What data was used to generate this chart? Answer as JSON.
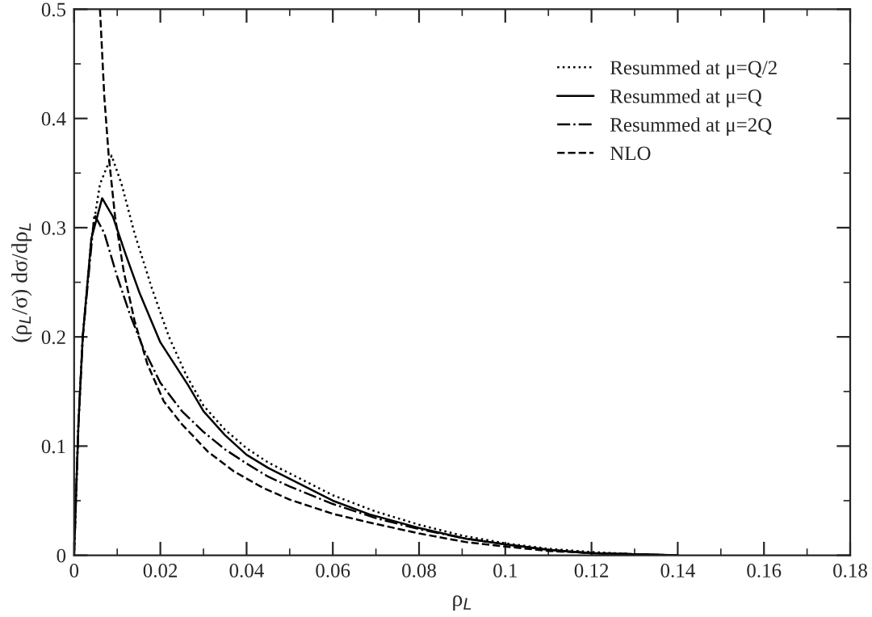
{
  "chart_data": {
    "type": "line",
    "xlabel": "ρ$_{L}$",
    "ylabel": "(ρ$_{L}$/σ) dσ/dρ$_{L}$",
    "xlim": [
      0,
      0.18
    ],
    "ylim": [
      0,
      0.5
    ],
    "xticks": [
      0,
      0.02,
      0.04,
      0.06,
      0.08,
      0.1,
      0.12,
      0.14,
      0.16,
      0.18
    ],
    "yticks": [
      0,
      0.1,
      0.2,
      0.3,
      0.4,
      0.5
    ],
    "legend": "top right",
    "grid": false,
    "marker": "none",
    "series": [
      {
        "name": "Resummed at μ=Q/2",
        "color": "#000000",
        "line_style": "dotted",
        "x": [
          0,
          0.001,
          0.002,
          0.004,
          0.006,
          0.0087,
          0.011,
          0.014,
          0.018,
          0.022,
          0.026,
          0.03,
          0.035,
          0.04,
          0.045,
          0.05,
          0.06,
          0.07,
          0.08,
          0.09,
          0.1,
          0.11,
          0.12,
          0.13,
          0.14
        ],
        "values": [
          0,
          0.12,
          0.2,
          0.29,
          0.34,
          0.366,
          0.34,
          0.295,
          0.245,
          0.2,
          0.165,
          0.137,
          0.115,
          0.098,
          0.085,
          0.075,
          0.055,
          0.04,
          0.028,
          0.018,
          0.011,
          0.006,
          0.003,
          0.001,
          0
        ]
      },
      {
        "name": "Resummed at μ=Q",
        "color": "#000000",
        "line_style": "solid",
        "x": [
          0,
          0.001,
          0.002,
          0.004,
          0.0065,
          0.009,
          0.012,
          0.0152,
          0.02,
          0.0264,
          0.03,
          0.035,
          0.04,
          0.045,
          0.05,
          0.06,
          0.0685,
          0.08,
          0.091,
          0.1,
          0.11,
          0.12,
          0.13,
          0.14
        ],
        "values": [
          0,
          0.12,
          0.2,
          0.29,
          0.327,
          0.31,
          0.275,
          0.24,
          0.195,
          0.156,
          0.132,
          0.11,
          0.092,
          0.08,
          0.07,
          0.05,
          0.0375,
          0.025,
          0.015,
          0.01,
          0.005,
          0.002,
          0.001,
          0
        ]
      },
      {
        "name": "Resummed at μ=2Q",
        "color": "#000000",
        "line_style": "dashdot",
        "x": [
          0,
          0.001,
          0.002,
          0.0047,
          0.007,
          0.01,
          0.013,
          0.016,
          0.02,
          0.025,
          0.03,
          0.035,
          0.04,
          0.045,
          0.05,
          0.06,
          0.07,
          0.08,
          0.09,
          0.1,
          0.11,
          0.12,
          0.13,
          0.14
        ],
        "values": [
          0,
          0.12,
          0.2,
          0.312,
          0.295,
          0.255,
          0.22,
          0.19,
          0.158,
          0.132,
          0.113,
          0.097,
          0.084,
          0.072,
          0.063,
          0.047,
          0.034,
          0.024,
          0.016,
          0.01,
          0.005,
          0.002,
          0.001,
          0
        ]
      },
      {
        "name": "NLO",
        "color": "#000000",
        "line_style": "dashed",
        "x": [
          0.006,
          0.007,
          0.008,
          0.0095,
          0.0115,
          0.014,
          0.017,
          0.0208,
          0.025,
          0.031,
          0.037,
          0.0437,
          0.05,
          0.06,
          0.0685,
          0.08,
          0.091,
          0.1,
          0.11,
          0.12,
          0.13,
          0.14
        ],
        "values": [
          0.5,
          0.42,
          0.367,
          0.31,
          0.26,
          0.215,
          0.175,
          0.141,
          0.12,
          0.095,
          0.077,
          0.062,
          0.051,
          0.038,
          0.03,
          0.02,
          0.012,
          0.008,
          0.004,
          0.002,
          0.001,
          0
        ]
      }
    ]
  }
}
